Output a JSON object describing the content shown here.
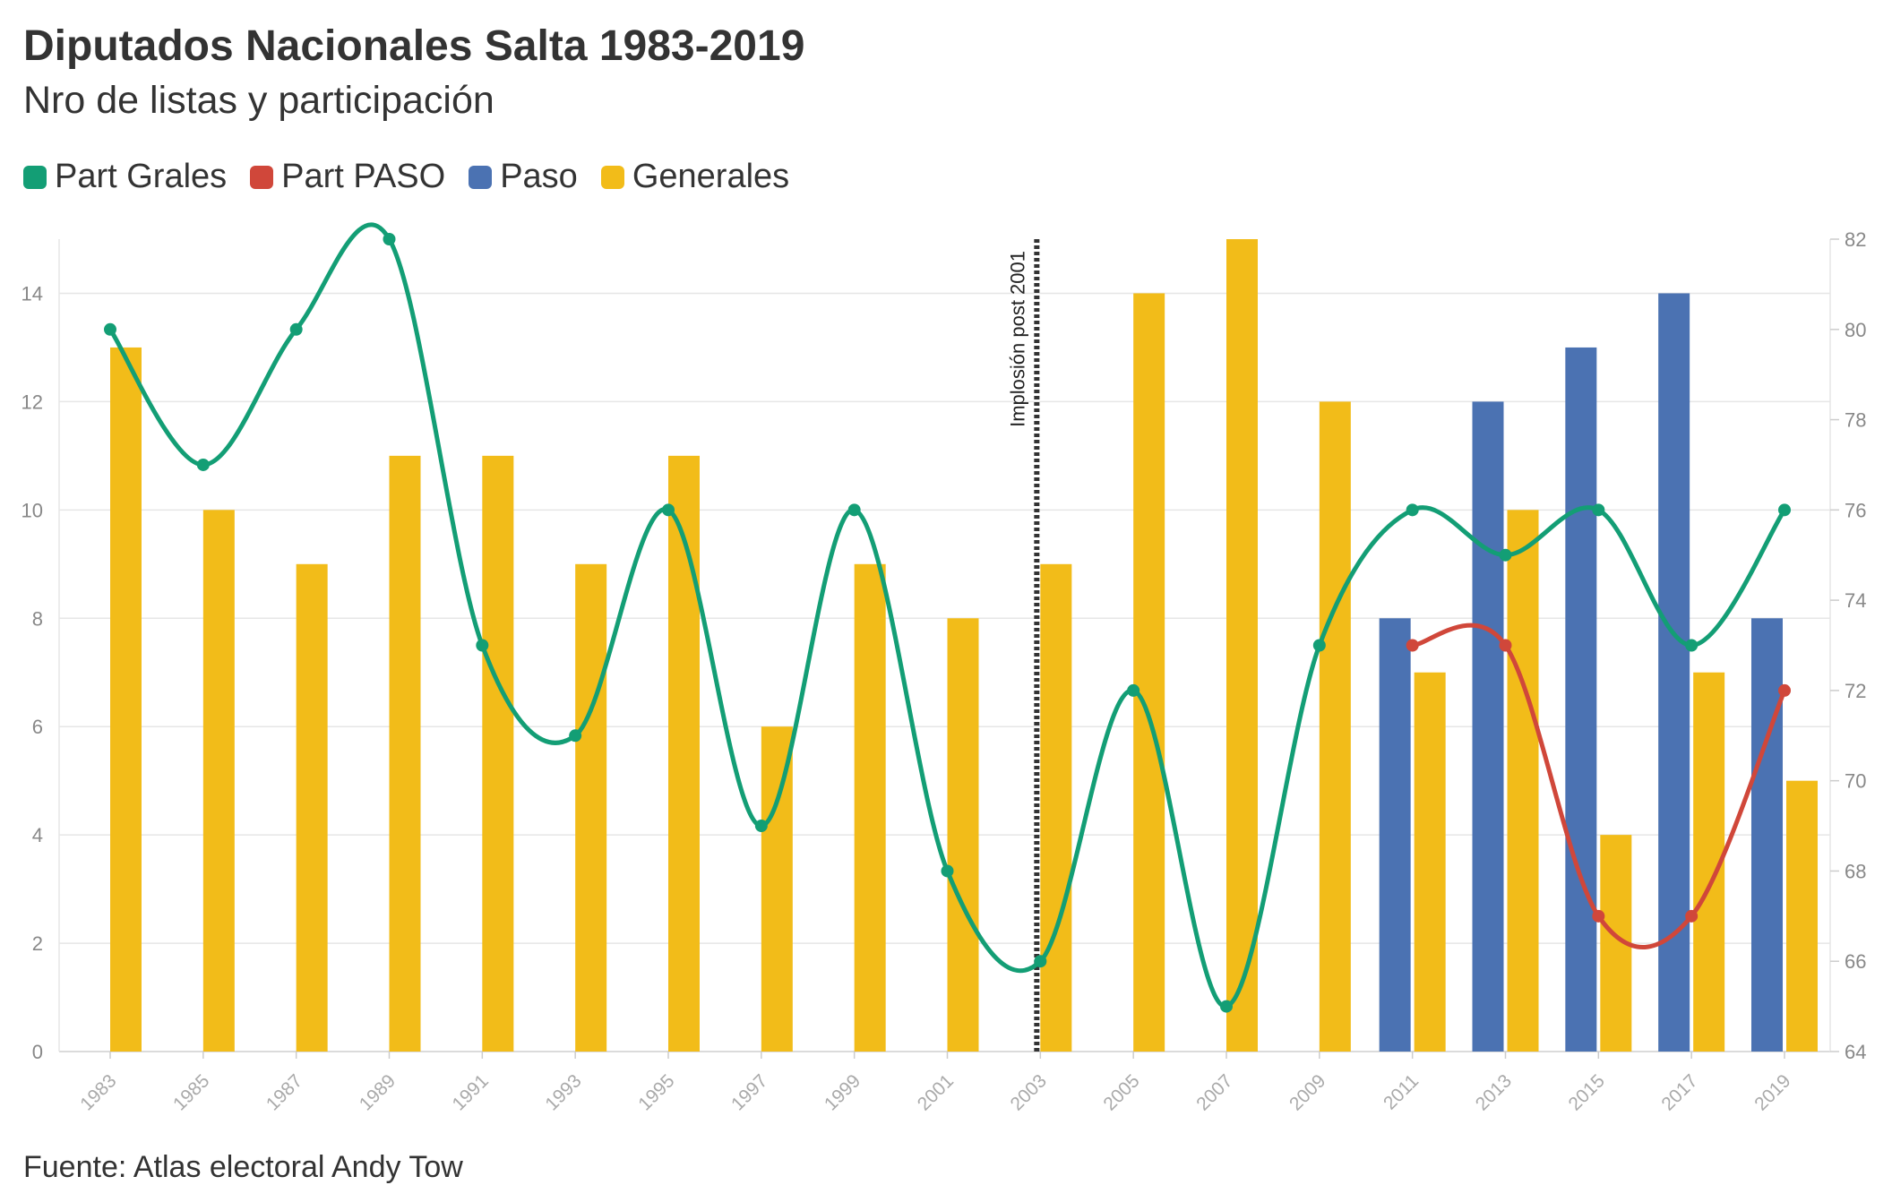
{
  "title": "Diputados Nacionales Salta 1983-2019",
  "subtitle": "Nro de listas y participación",
  "source": "Fuente: Atlas electoral Andy Tow",
  "legend": [
    {
      "label": "Part Grales",
      "color": "#139e75"
    },
    {
      "label": "Part PASO",
      "color": "#d0473a"
    },
    {
      "label": "Paso",
      "color": "#4b72b2"
    },
    {
      "label": "Generales",
      "color": "#f2bc19"
    }
  ],
  "chart_data": {
    "type": "bar",
    "categories": [
      "1983",
      "1985",
      "1987",
      "1989",
      "1991",
      "1993",
      "1995",
      "1997",
      "1999",
      "2001",
      "2003",
      "2005",
      "2007",
      "2009",
      "2011",
      "2013",
      "2015",
      "2017",
      "2019"
    ],
    "series": [
      {
        "name": "Paso",
        "type": "bar",
        "axis": "left",
        "color": "#4b72b2",
        "values": [
          null,
          null,
          null,
          null,
          null,
          null,
          null,
          null,
          null,
          null,
          null,
          null,
          null,
          null,
          8,
          12,
          13,
          14,
          8
        ]
      },
      {
        "name": "Generales",
        "type": "bar",
        "axis": "left",
        "color": "#f2bc19",
        "values": [
          13,
          10,
          9,
          11,
          11,
          9,
          11,
          6,
          9,
          8,
          9,
          14,
          15,
          12,
          7,
          10,
          4,
          7,
          5
        ]
      },
      {
        "name": "Part Grales",
        "type": "line",
        "axis": "right",
        "color": "#139e75",
        "values": [
          80,
          77,
          80,
          82,
          73,
          71,
          76,
          69,
          76,
          68,
          66,
          72,
          65,
          73,
          76,
          75,
          76,
          73,
          76
        ]
      },
      {
        "name": "Part PASO",
        "type": "line",
        "axis": "right",
        "color": "#d0473a",
        "values": [
          null,
          null,
          null,
          null,
          null,
          null,
          null,
          null,
          null,
          null,
          null,
          null,
          null,
          null,
          73,
          73,
          67,
          67,
          72
        ]
      }
    ],
    "y_left": {
      "min": 0,
      "max": 15,
      "ticks": [
        "0",
        "2",
        "4",
        "6",
        "8",
        "10",
        "12",
        "14"
      ]
    },
    "y_right": {
      "min": 64,
      "max": 82,
      "ticks": [
        "64",
        "66",
        "68",
        "70",
        "72",
        "74",
        "76",
        "78",
        "80",
        "82"
      ]
    },
    "annotation": {
      "category": "2003",
      "label": "Implosión post 2001"
    },
    "grid": true,
    "legend_position": "top-left"
  }
}
